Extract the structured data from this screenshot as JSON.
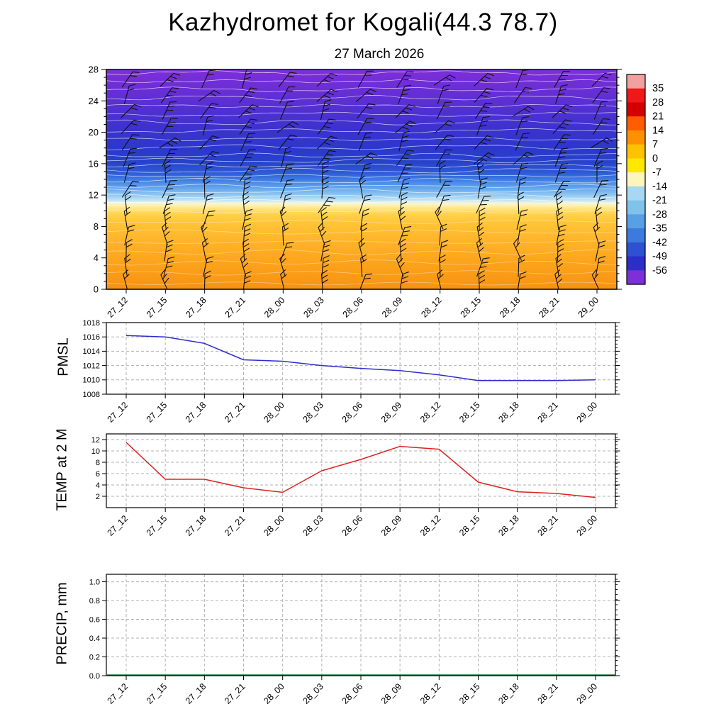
{
  "title": "Kazhydromet for Kogali(44.3 78.7)",
  "subtitle": "27 March 2026",
  "time_labels": [
    "27_12",
    "27_15",
    "27_18",
    "27_21",
    "28_00",
    "28_03",
    "28_06",
    "28_09",
    "28_12",
    "28_15",
    "28_18",
    "28_21",
    "29_00"
  ],
  "chart_data": [
    {
      "type": "heatmap",
      "ylim": [
        0,
        28
      ],
      "yticks": [
        0,
        4,
        8,
        12,
        16,
        20,
        24,
        28
      ],
      "x_categories": [
        "27_12",
        "27_15",
        "27_18",
        "27_21",
        "28_00",
        "28_03",
        "28_06",
        "28_09",
        "28_12",
        "28_15",
        "28_18",
        "28_21",
        "29_00"
      ],
      "gradient_stops": [
        {
          "offset": 0.0,
          "color": "#7d2fd8"
        },
        {
          "offset": 0.08,
          "color": "#6d2ed6"
        },
        {
          "offset": 0.18,
          "color": "#5230d2"
        },
        {
          "offset": 0.27,
          "color": "#3c32ce"
        },
        {
          "offset": 0.36,
          "color": "#2c38cc"
        },
        {
          "offset": 0.42,
          "color": "#2742ca"
        },
        {
          "offset": 0.47,
          "color": "#2e5ad6"
        },
        {
          "offset": 0.5,
          "color": "#3e7ce2"
        },
        {
          "offset": 0.54,
          "color": "#64a6ec"
        },
        {
          "offset": 0.57,
          "color": "#8fc6f1"
        },
        {
          "offset": 0.595,
          "color": "#c2e4f5"
        },
        {
          "offset": 0.608,
          "color": "#f4f6dd"
        },
        {
          "offset": 0.617,
          "color": "#fdf2b5"
        },
        {
          "offset": 0.632,
          "color": "#ffe583"
        },
        {
          "offset": 0.66,
          "color": "#ffd14b"
        },
        {
          "offset": 0.7,
          "color": "#ffc437"
        },
        {
          "offset": 0.78,
          "color": "#ffb42a"
        },
        {
          "offset": 0.87,
          "color": "#fda51c"
        },
        {
          "offset": 1.0,
          "color": "#f79212"
        }
      ],
      "colorbar": {
        "labels": [
          35,
          28,
          21,
          14,
          7,
          0,
          -7,
          -14,
          -21,
          -28,
          -35,
          -42,
          -49,
          -56
        ],
        "segment_colors": [
          "#f2a0a0",
          "#f01818",
          "#d40000",
          "#ff5c00",
          "#ff9100",
          "#ffc100",
          "#ffe800",
          "#fdf6bc",
          "#a6d8f2",
          "#7fc2ea",
          "#57a0e6",
          "#3d7ade",
          "#2c52d2",
          "#2c2ec8",
          "#7d2fd8"
        ]
      },
      "wind_barbs": {
        "columns": 13,
        "levels": [
          0.5,
          2.5,
          4.5,
          6.5,
          8.5,
          10.5,
          12.5,
          14.5,
          16.5,
          18.5,
          20.5,
          22.5,
          24.5,
          26.5
        ]
      },
      "contours": {
        "color": "#ffffff"
      }
    },
    {
      "type": "line",
      "name": "PMSL",
      "color": "#2d2dcc",
      "ylim": [
        1008,
        1018
      ],
      "yticks": [
        1008,
        1010,
        1012,
        1014,
        1016,
        1018
      ],
      "ytick_labels": [
        "1008",
        "1010",
        "1012",
        "1014",
        "1016",
        "1018"
      ],
      "values": [
        1016.2,
        1016.0,
        1015.1,
        1012.8,
        1012.6,
        1012.0,
        1011.6,
        1011.3,
        1010.7,
        1009.9,
        1009.9,
        1009.9,
        1010.0
      ]
    },
    {
      "type": "line",
      "name": "TEMP at 2 M",
      "color": "#e02020",
      "ylim": [
        0,
        13
      ],
      "yticks": [
        2,
        4,
        6,
        8,
        10,
        12
      ],
      "ytick_labels": [
        "2",
        "4",
        "6",
        "8",
        "10",
        "12"
      ],
      "values": [
        11.5,
        5.0,
        5.0,
        3.5,
        2.7,
        6.5,
        8.5,
        10.8,
        10.3,
        4.5,
        2.8,
        2.5,
        1.8
      ]
    },
    {
      "type": "line",
      "name": "PRECIP, mm",
      "color": "#1d7a33",
      "ylim": [
        0,
        1.08
      ],
      "yticks": [
        0,
        0.2,
        0.4,
        0.6,
        0.8,
        1
      ],
      "ytick_labels": [
        "0.0",
        "0.2",
        "0.4",
        "0.6",
        "0.8",
        "1.0"
      ],
      "values": [
        0,
        0,
        0,
        0,
        0,
        0,
        0,
        0,
        0,
        0,
        0,
        0,
        0
      ]
    }
  ]
}
